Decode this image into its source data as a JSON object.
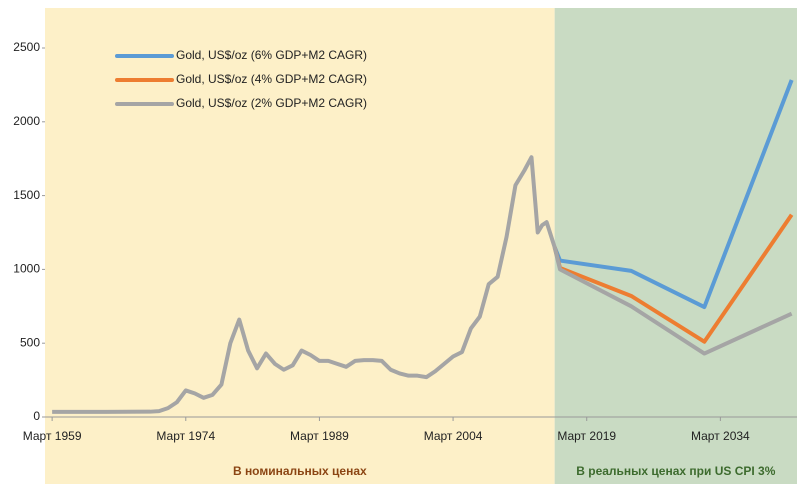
{
  "chart_data": {
    "type": "line",
    "xlim": [
      1958.2,
      2042.6
    ],
    "ylim": [
      0,
      2500
    ],
    "yticks": [
      0,
      500,
      1000,
      1500,
      2000,
      2500
    ],
    "xticks": [
      {
        "value": 1959,
        "label": "Март 1959"
      },
      {
        "value": 1974,
        "label": "Март 1974"
      },
      {
        "value": 1989,
        "label": "Март 1989"
      },
      {
        "value": 2004,
        "label": "Март 2004"
      },
      {
        "value": 2019,
        "label": "Март 2019"
      },
      {
        "value": 2034,
        "label": "Март 2034"
      }
    ],
    "regions": [
      {
        "label": "В номинальных ценах",
        "xlim": [
          1958.2,
          2015.4
        ],
        "color": "#fdf0c8",
        "label_color": "#8b4513"
      },
      {
        "label": "В реальных ценах при US CPI 3%",
        "xlim": [
          2015.4,
          2042.6
        ],
        "color": "#c9dbc3",
        "label_color": "#3d6b2e"
      }
    ],
    "series": [
      {
        "name": "Gold, US$/oz (6% GDP+M2 CAGR)",
        "color": "#5b9bd5",
        "x": [
          2015.4,
          2016,
          2024,
          2032.2,
          2042
        ],
        "values": [
          1150,
          1060,
          990,
          745,
          2283
        ]
      },
      {
        "name": "Gold, US$/oz (4% GDP+M2 CAGR)",
        "color": "#ed7d31",
        "x": [
          2015.4,
          2016,
          2024,
          2032.2,
          2042
        ],
        "values": [
          1150,
          1010,
          820,
          510,
          1370
        ]
      },
      {
        "name": "Gold, US$/oz (2% GDP+M2 CAGR)",
        "color": "#a5a5a5",
        "x": [
          1959,
          1965,
          1970,
          1971,
          1972,
          1973,
          1974,
          1975,
          1976,
          1977,
          1978,
          1979,
          1980,
          1981,
          1982,
          1983,
          1984,
          1985,
          1986,
          1987,
          1988,
          1989,
          1990,
          1991,
          1992,
          1993,
          1994,
          1995,
          1996,
          1997,
          1998,
          1999,
          2000,
          2001,
          2002,
          2003,
          2004,
          2005,
          2006,
          2007,
          2008,
          2009,
          2010,
          2011,
          2012,
          2012.8,
          2013.3,
          2013.5,
          2014,
          2014.5,
          2015.4,
          2016,
          2024,
          2032.2,
          2042
        ],
        "values": [
          35,
          35,
          36,
          40,
          60,
          100,
          180,
          160,
          130,
          150,
          220,
          500,
          660,
          450,
          330,
          430,
          360,
          320,
          350,
          450,
          420,
          380,
          380,
          360,
          340,
          380,
          385,
          385,
          380,
          320,
          295,
          280,
          280,
          270,
          310,
          360,
          410,
          440,
          600,
          680,
          900,
          950,
          1220,
          1570,
          1670,
          1760,
          1400,
          1250,
          1300,
          1320,
          1150,
          1000,
          750,
          430,
          700
        ]
      }
    ]
  }
}
